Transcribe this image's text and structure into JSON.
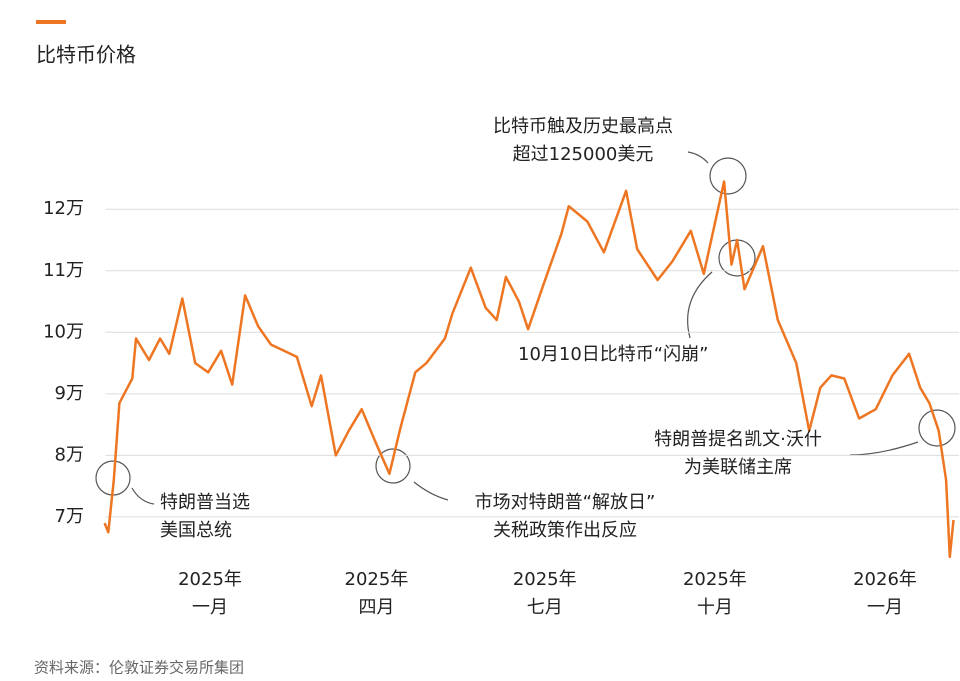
{
  "chart_data": {
    "type": "line",
    "series": [
      {
        "name": "比特币价格",
        "color": "#ee7622",
        "x": [
          "2024-11-05",
          "2024-11-07",
          "2024-11-10",
          "2024-11-13",
          "2024-11-20",
          "2024-11-22",
          "2024-11-29",
          "2024-12-05",
          "2024-12-10",
          "2024-12-17",
          "2024-12-24",
          "2024-12-31",
          "2025-01-07",
          "2025-01-13",
          "2025-01-20",
          "2025-01-27",
          "2025-02-03",
          "2025-02-10",
          "2025-02-17",
          "2025-02-25",
          "2025-03-02",
          "2025-03-10",
          "2025-03-17",
          "2025-03-24",
          "2025-03-31",
          "2025-04-08",
          "2025-04-14",
          "2025-04-22",
          "2025-04-28",
          "2025-05-08",
          "2025-05-12",
          "2025-05-22",
          "2025-05-30",
          "2025-06-05",
          "2025-06-10",
          "2025-06-17",
          "2025-06-22",
          "2025-06-30",
          "2025-07-10",
          "2025-07-14",
          "2025-07-24",
          "2025-08-02",
          "2025-08-14",
          "2025-08-20",
          "2025-08-31",
          "2025-09-08",
          "2025-09-18",
          "2025-09-25",
          "2025-10-06",
          "2025-10-10",
          "2025-10-13",
          "2025-10-17",
          "2025-10-27",
          "2025-11-04",
          "2025-11-14",
          "2025-11-21",
          "2025-11-27",
          "2025-12-03",
          "2025-12-10",
          "2025-12-18",
          "2025-12-27",
          "2026-01-05",
          "2026-01-14",
          "2026-01-20",
          "2026-01-25",
          "2026-01-30",
          "2026-02-03",
          "2026-02-05",
          "2026-02-07"
        ],
        "values": [
          69000,
          67500,
          76000,
          88500,
          92500,
          99000,
          95500,
          99000,
          96500,
          105500,
          95000,
          93500,
          97000,
          91500,
          106000,
          101000,
          98000,
          97000,
          96000,
          88000,
          93000,
          80000,
          84000,
          87500,
          82500,
          77000,
          84500,
          93500,
          95000,
          99000,
          103000,
          110500,
          104000,
          102000,
          109000,
          105000,
          100500,
          107500,
          116000,
          120500,
          118000,
          113000,
          123000,
          113500,
          108500,
          111500,
          116500,
          109500,
          124500,
          111000,
          115000,
          107000,
          114000,
          102000,
          95000,
          84000,
          91000,
          93000,
          92500,
          86000,
          87500,
          93000,
          96500,
          91000,
          88500,
          84000,
          76000,
          63500,
          69500
        ]
      }
    ],
    "xlim": [
      "2024-10-30",
      "2026-02-10"
    ],
    "xticks": [
      {
        "value": "2025-01-01",
        "label": "2025年\n一月"
      },
      {
        "value": "2025-04-01",
        "label": "2025年\n四月"
      },
      {
        "value": "2025-07-01",
        "label": "2025年\n七月"
      },
      {
        "value": "2025-10-01",
        "label": "2025年\n十月"
      },
      {
        "value": "2026-01-01",
        "label": "2026年\n一月"
      }
    ],
    "ylim": [
      63000,
      128000
    ],
    "yticks": [
      {
        "value": 70000,
        "label": "7万"
      },
      {
        "value": 80000,
        "label": "8万"
      },
      {
        "value": 90000,
        "label": "9万"
      },
      {
        "value": 100000,
        "label": "10万"
      },
      {
        "value": 110000,
        "label": "11万"
      },
      {
        "value": 120000,
        "label": "12万"
      }
    ],
    "grid": true,
    "annotations": [
      "特朗普当选\n美国总统",
      "市场对特朗普“解放日”\n关税政策作出反应",
      "比特币触及历史最高点\n超过125000美元",
      "10月10日比特币“闪崩”",
      "特朗普提名凯文·沃什\n为美联储主席"
    ],
    "source": "资料来源：伦敦证券交易所集团"
  }
}
